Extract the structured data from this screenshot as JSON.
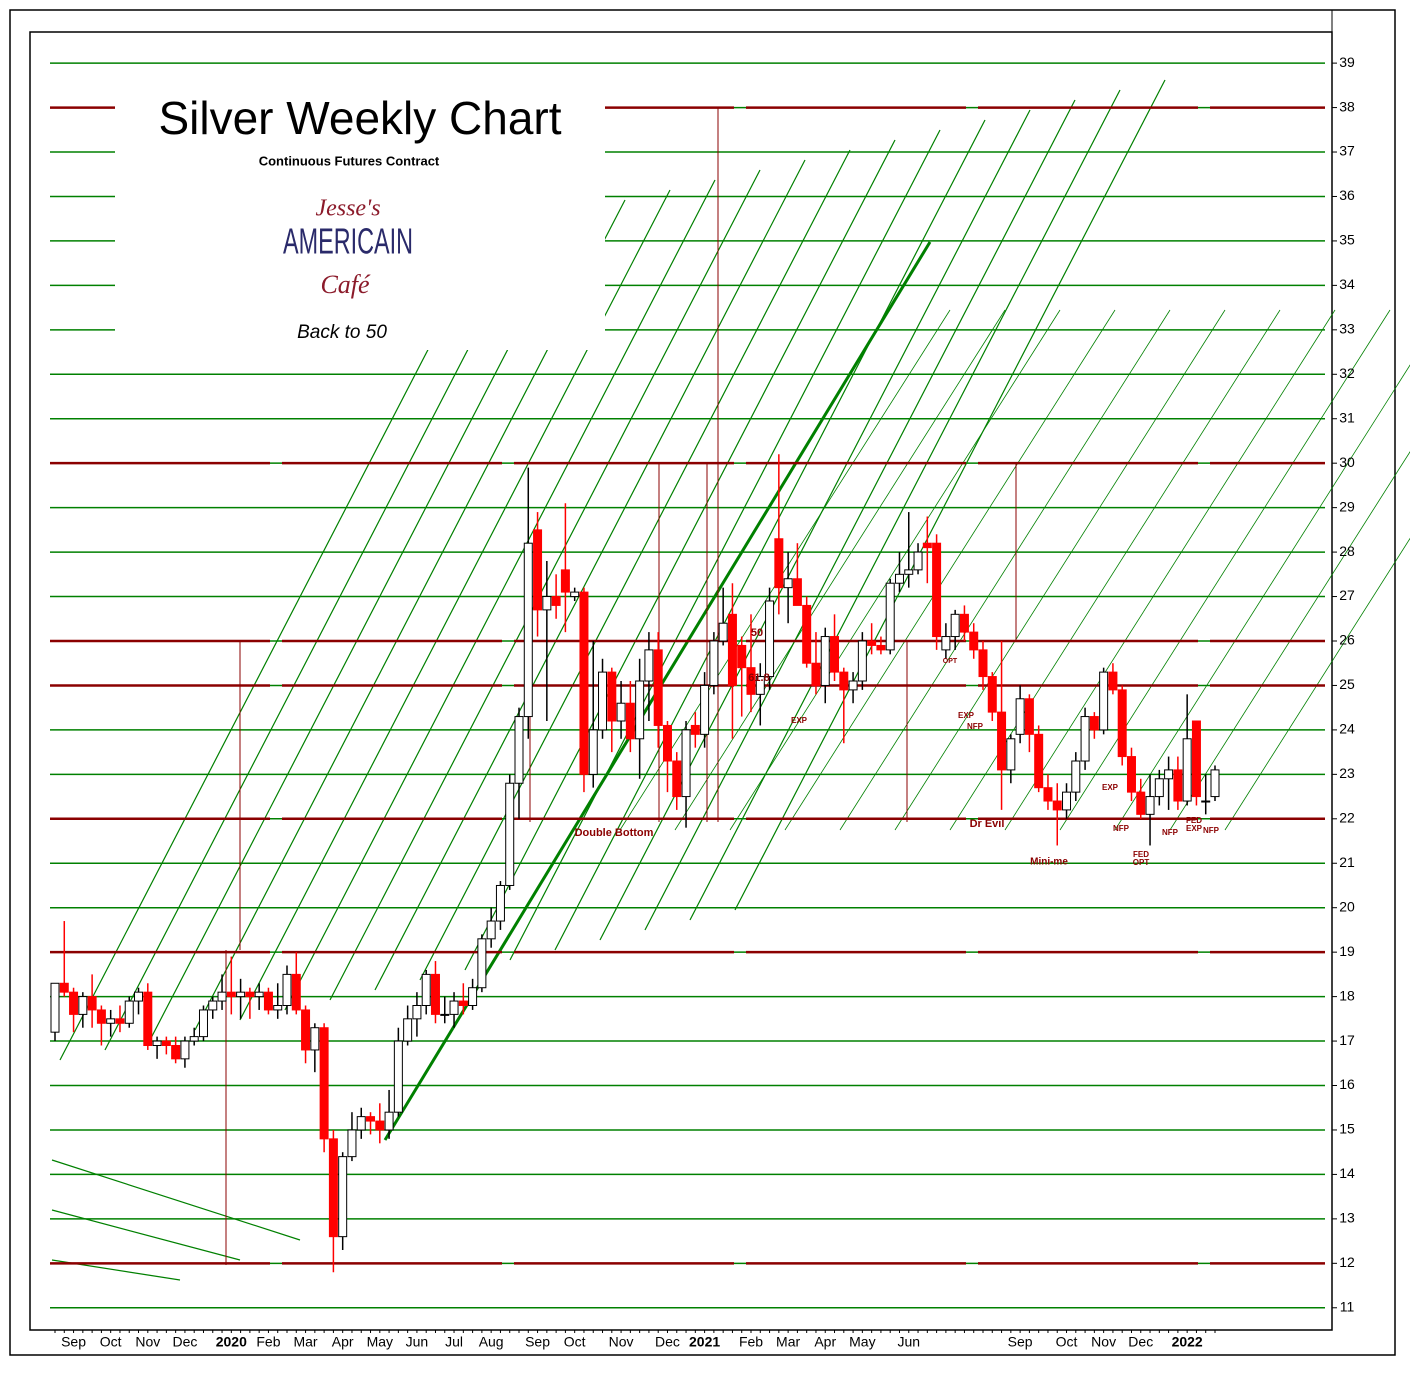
{
  "chart_data": {
    "type": "candlestick",
    "title": "Silver Weekly Chart",
    "subtitle": "Continuous Futures Contract",
    "logo": [
      "Jesse's",
      "AMERICAIN",
      "Café"
    ],
    "tagline": "Back to 50",
    "categories": [
      null,
      null,
      "Sep",
      null,
      null,
      null,
      "Oct",
      null,
      null,
      null,
      "Nov",
      null,
      null,
      null,
      "Dec",
      null,
      null,
      null,
      null,
      "2020",
      null,
      null,
      null,
      "Feb",
      null,
      null,
      null,
      "Mar",
      null,
      null,
      null,
      "Apr",
      null,
      null,
      null,
      "May",
      null,
      null,
      null,
      "Jun",
      null,
      null,
      null,
      "Jul",
      null,
      null,
      null,
      "Aug",
      null,
      null,
      null,
      null,
      "Sep",
      null,
      null,
      null,
      "Oct",
      null,
      null,
      null,
      null,
      "Nov",
      null,
      null,
      null,
      null,
      "Dec",
      null,
      null,
      null,
      "2021",
      null,
      null,
      null,
      null,
      "Feb",
      null,
      null,
      null,
      "Mar",
      null,
      null,
      null,
      "Apr",
      null,
      null,
      null,
      "May",
      null,
      null,
      null,
      null,
      "Jun",
      null,
      null,
      null,
      null,
      null,
      null,
      null,
      null,
      null,
      null,
      null,
      "Sep",
      null,
      null,
      null,
      null,
      "Oct",
      null,
      null,
      null,
      "Nov",
      null,
      null,
      null,
      "Dec",
      null,
      null,
      null,
      null,
      "2022",
      null,
      null,
      null
    ],
    "open": [
      17.2,
      18.3,
      18.1,
      17.6,
      18.0,
      17.7,
      17.4,
      17.5,
      17.4,
      17.9,
      18.1,
      16.9,
      17.0,
      16.9,
      16.6,
      17.0,
      17.1,
      17.7,
      17.9,
      18.1,
      18.0,
      18.1,
      18.0,
      18.1,
      17.7,
      17.8,
      18.5,
      17.7,
      16.8,
      17.3,
      14.8,
      12.6,
      14.4,
      15.0,
      15.3,
      15.2,
      15.0,
      15.4,
      17.0,
      17.5,
      17.8,
      18.5,
      17.6,
      17.6,
      17.9,
      17.8,
      18.2,
      19.3,
      19.7,
      20.5,
      22.8,
      24.3,
      28.5,
      26.7,
      27.0,
      27.6,
      27.0,
      27.1,
      23.0,
      24.0,
      25.3,
      24.2,
      24.6,
      23.8,
      25.1,
      25.8,
      24.1,
      23.3,
      22.5,
      24.1,
      23.9,
      25.0,
      26.0,
      26.6,
      25.9,
      25.4,
      24.8,
      25.2,
      28.3,
      27.2,
      27.4,
      26.8,
      25.5,
      25.0,
      26.1,
      25.3,
      24.9,
      25.1,
      26.0,
      25.9,
      25.8,
      27.3,
      27.5,
      27.6,
      28.2,
      28.2,
      25.8,
      26.1,
      26.6,
      26.2,
      25.8,
      25.2,
      24.4,
      23.1,
      23.9,
      24.7,
      23.9,
      22.7,
      22.4,
      22.2,
      22.6,
      23.3,
      24.3,
      24.0,
      25.3,
      24.9,
      23.4,
      22.6,
      22.1,
      22.5,
      22.9,
      23.1,
      22.4,
      24.2,
      22.4,
      22.5
    ],
    "high": [
      18.3,
      19.7,
      18.2,
      18.1,
      18.5,
      17.8,
      17.7,
      17.8,
      18.0,
      18.2,
      18.3,
      17.1,
      17.1,
      17.1,
      17.1,
      17.3,
      17.8,
      18.0,
      18.5,
      18.9,
      18.4,
      18.2,
      18.3,
      18.2,
      18.3,
      18.7,
      19.0,
      17.8,
      17.4,
      17.4,
      15.0,
      14.5,
      15.4,
      15.5,
      15.4,
      15.6,
      15.9,
      17.3,
      17.8,
      18.1,
      18.6,
      18.8,
      18.0,
      18.1,
      18.3,
      18.4,
      19.4,
      20.0,
      20.6,
      23.0,
      24.5,
      29.9,
      28.9,
      27.8,
      27.5,
      29.1,
      27.2,
      27.2,
      26.0,
      25.6,
      25.4,
      25.1,
      25.1,
      25.6,
      26.2,
      26.2,
      24.2,
      23.5,
      24.2,
      24.4,
      25.3,
      26.2,
      27.2,
      27.3,
      26.1,
      26.6,
      25.5,
      27.2,
      30.2,
      28.0,
      28.2,
      27.0,
      26.2,
      26.3,
      26.6,
      25.4,
      25.3,
      26.2,
      26.4,
      26.1,
      27.4,
      28.0,
      28.9,
      28.2,
      28.8,
      28.4,
      26.4,
      26.7,
      26.8,
      26.4,
      26.0,
      25.3,
      26.0,
      23.9,
      25.0,
      24.8,
      24.1,
      23.0,
      22.8,
      22.8,
      23.5,
      24.5,
      24.4,
      25.4,
      25.5,
      25.0,
      23.6,
      22.9,
      23.0,
      23.1,
      23.4,
      23.4,
      24.8,
      24.2,
      23.0,
      23.2
    ],
    "low": [
      17.0,
      18.0,
      17.2,
      17.3,
      17.3,
      16.9,
      17.1,
      17.2,
      17.3,
      17.6,
      16.8,
      16.6,
      16.7,
      16.5,
      16.4,
      16.9,
      17.0,
      17.5,
      17.7,
      17.6,
      17.5,
      17.5,
      17.7,
      17.6,
      17.5,
      17.6,
      17.6,
      16.5,
      16.3,
      14.5,
      11.8,
      12.3,
      14.3,
      14.8,
      14.9,
      14.7,
      14.8,
      15.3,
      16.9,
      17.1,
      17.6,
      17.4,
      17.4,
      17.3,
      17.6,
      17.7,
      18.1,
      19.1,
      19.5,
      20.4,
      22.0,
      23.8,
      26.1,
      24.2,
      26.5,
      26.2,
      26.9,
      22.6,
      22.7,
      23.8,
      23.5,
      23.8,
      23.5,
      22.9,
      24.2,
      23.6,
      22.6,
      22.2,
      21.8,
      23.6,
      23.6,
      24.8,
      25.9,
      23.8,
      24.3,
      24.4,
      24.1,
      24.9,
      26.6,
      26.4,
      26.8,
      25.4,
      24.8,
      24.6,
      25.1,
      23.7,
      24.6,
      24.9,
      25.7,
      25.7,
      25.7,
      27.1,
      27.2,
      27.5,
      27.3,
      25.8,
      25.6,
      25.8,
      26.0,
      25.6,
      24.9,
      24.2,
      22.2,
      22.8,
      23.7,
      23.5,
      22.6,
      22.2,
      21.4,
      22.0,
      22.4,
      23.1,
      23.8,
      23.9,
      24.8,
      23.2,
      22.4,
      22.0,
      21.4,
      22.3,
      22.2,
      22.2,
      22.3,
      22.3,
      22.1,
      22.4
    ],
    "close": [
      18.3,
      18.1,
      17.6,
      18.0,
      17.7,
      17.4,
      17.5,
      17.4,
      17.9,
      18.1,
      16.9,
      17.0,
      16.9,
      16.6,
      17.0,
      17.1,
      17.7,
      17.9,
      18.1,
      18.0,
      18.1,
      18.0,
      18.1,
      17.7,
      17.8,
      18.5,
      17.7,
      16.8,
      17.3,
      14.8,
      12.6,
      14.4,
      15.0,
      15.3,
      15.2,
      15.0,
      15.4,
      17.0,
      17.5,
      17.8,
      18.5,
      17.6,
      17.6,
      17.9,
      17.8,
      18.2,
      19.3,
      19.7,
      20.5,
      22.8,
      24.3,
      28.2,
      26.7,
      27.0,
      26.8,
      27.1,
      27.1,
      23.0,
      24.0,
      25.3,
      24.2,
      24.6,
      23.8,
      25.1,
      25.8,
      24.1,
      23.3,
      22.5,
      24.0,
      23.9,
      25.0,
      26.0,
      26.4,
      25.0,
      25.4,
      24.8,
      25.2,
      26.9,
      27.2,
      27.4,
      26.8,
      25.5,
      25.0,
      26.1,
      25.3,
      24.9,
      25.1,
      26.0,
      25.9,
      25.8,
      27.3,
      27.5,
      27.6,
      28.0,
      28.1,
      26.1,
      26.1,
      26.6,
      26.2,
      25.8,
      25.2,
      24.4,
      23.1,
      23.8,
      24.7,
      23.9,
      22.7,
      22.4,
      22.2,
      22.6,
      23.3,
      24.3,
      24.0,
      25.3,
      24.9,
      23.4,
      22.6,
      22.1,
      22.5,
      22.9,
      23.1,
      22.4,
      23.8,
      22.5,
      22.4,
      23.1
    ],
    "up_color": "#ffffff",
    "down_color": "#ff0000",
    "ylim": [
      10.5,
      39.7
    ],
    "yticks": [
      11,
      12,
      13,
      14,
      15,
      16,
      17,
      18,
      19,
      20,
      21,
      22,
      23,
      24,
      25,
      26,
      27,
      28,
      29,
      30,
      31,
      32,
      33,
      34,
      35,
      36,
      37,
      38,
      39
    ],
    "grid": true,
    "grid_color": "#008000",
    "reference_lines": [
      38,
      30,
      26,
      25,
      22,
      19,
      12
    ],
    "reference_color": "#8b0000",
    "annotations": [
      "Double Bottom",
      "Dr Evil",
      "50",
      "61.8",
      "EXP",
      "OPT",
      "EXP",
      "NFP",
      "Mini-me",
      "EXP",
      "NFP",
      "NFP",
      "FED",
      "OPT",
      "FED",
      "EXP",
      "NFP"
    ]
  }
}
